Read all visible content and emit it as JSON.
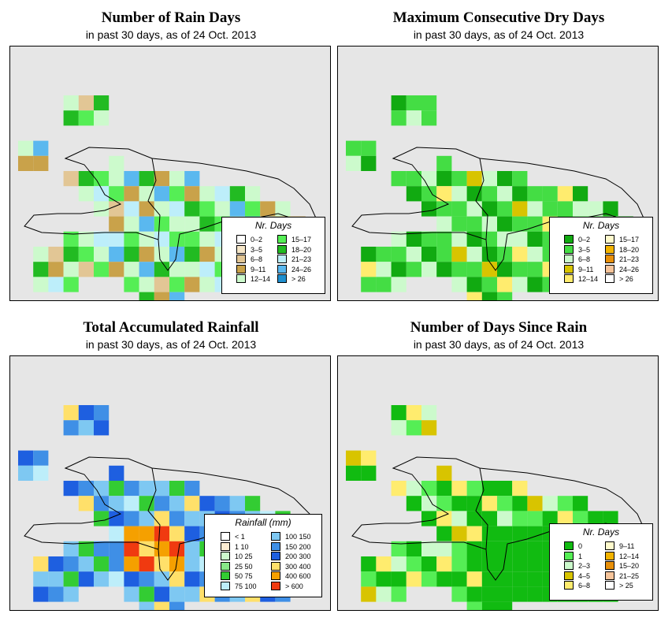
{
  "panels": [
    {
      "title": "Number of Rain Days",
      "subtitle": "in past 30 days, as of  24 Oct. 2013",
      "legend": {
        "title": "Nr. Days",
        "items": [
          {
            "label": "0–2",
            "color": "#ffffff"
          },
          {
            "label": "3–5",
            "color": "#f5e6c8"
          },
          {
            "label": "6–8",
            "color": "#e2c695"
          },
          {
            "label": "9–11",
            "color": "#c9a24a"
          },
          {
            "label": "12–14",
            "color": "#ccfacc"
          },
          {
            "label": "15–17",
            "color": "#55ee55"
          },
          {
            "label": "18–20",
            "color": "#22bb22"
          },
          {
            "label": "21–23",
            "color": "#bdeefa"
          },
          {
            "label": "24–26",
            "color": "#5ab8ef"
          },
          {
            "label": "> 26",
            "color": "#1f8fcf"
          }
        ]
      }
    },
    {
      "title": "Maximum Consecutive Dry Days",
      "subtitle": "in past 30 days, as of  24 Oct. 2013",
      "legend": {
        "title": "Nr. Days",
        "items": [
          {
            "label": "0–2",
            "color": "#11aa11"
          },
          {
            "label": "3–5",
            "color": "#44dd44"
          },
          {
            "label": "6–8",
            "color": "#ccfacc"
          },
          {
            "label": "9–11",
            "color": "#d8c400"
          },
          {
            "label": "12–14",
            "color": "#ffec6e"
          },
          {
            "label": "15–17",
            "color": "#fffacc"
          },
          {
            "label": "18–20",
            "color": "#f2b300"
          },
          {
            "label": "21–23",
            "color": "#e8900a"
          },
          {
            "label": "24–26",
            "color": "#f6c49a"
          },
          {
            "label": "> 26",
            "color": "#ffffff"
          }
        ]
      }
    },
    {
      "title": "Total Accumulated Rainfall",
      "subtitle": "in past 30 days, as of  24 Oct. 2013",
      "legend": {
        "title": "Rainfall (mm)",
        "items": [
          {
            "label": "< 1",
            "color": "#ffffff"
          },
          {
            "label": "1    10",
            "color": "#fbecd2"
          },
          {
            "label": "10    25",
            "color": "#ccfacc"
          },
          {
            "label": "25    50",
            "color": "#88e888"
          },
          {
            "label": "50    75",
            "color": "#33cc33"
          },
          {
            "label": "75   100",
            "color": "#bdeefa"
          },
          {
            "label": "100   150",
            "color": "#7ec8f2"
          },
          {
            "label": "150   200",
            "color": "#3f8fe6"
          },
          {
            "label": "200   300",
            "color": "#1e5fe0"
          },
          {
            "label": "300   400",
            "color": "#ffe06a"
          },
          {
            "label": "400   600",
            "color": "#f5a000"
          },
          {
            "label": "> 600",
            "color": "#f03a10"
          }
        ]
      }
    },
    {
      "title": "Number of Days Since Rain",
      "subtitle": "in past 30 days, as of  24 Oct. 2013",
      "legend": {
        "title": "Nr. Days",
        "items": [
          {
            "label": "0",
            "color": "#11bb11"
          },
          {
            "label": "1",
            "color": "#55ee55"
          },
          {
            "label": "2–3",
            "color": "#ccfacc"
          },
          {
            "label": "4–5",
            "color": "#d8c400"
          },
          {
            "label": "6–8",
            "color": "#ffec6e"
          },
          {
            "label": "9–11",
            "color": "#fffacc"
          },
          {
            "label": "12–14",
            "color": "#f2b300"
          },
          {
            "label": "15–20",
            "color": "#e8900a"
          },
          {
            "label": "21–25",
            "color": "#f6c49a"
          },
          {
            "label": "> 25",
            "color": "#ffffff"
          }
        ]
      }
    }
  ]
}
